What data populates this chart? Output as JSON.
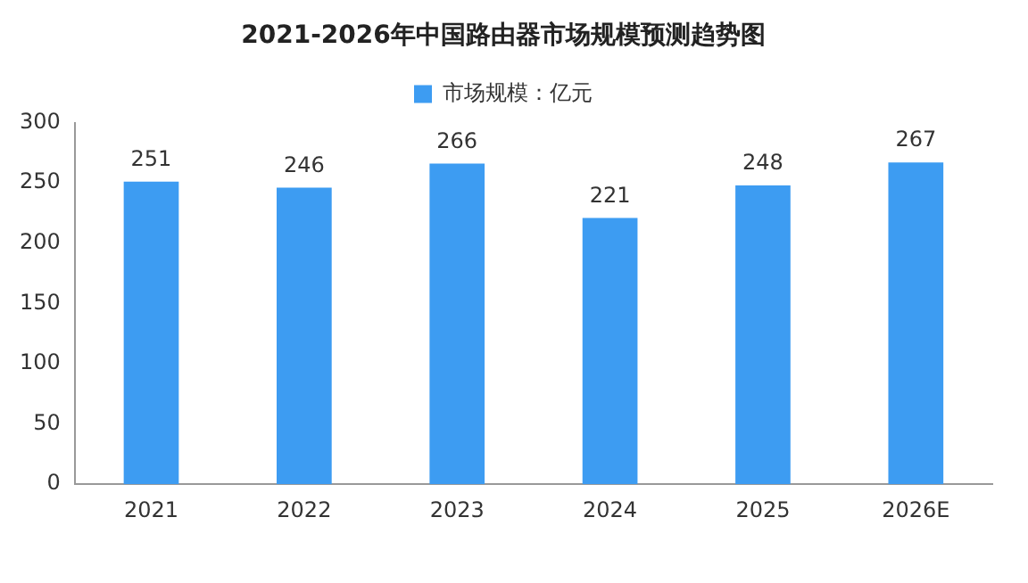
{
  "chart_data": {
    "type": "bar",
    "title": "2021-2026年中国路由器市场规模预测趋势图",
    "categories": [
      "2021",
      "2022",
      "2023",
      "2024",
      "2025",
      "2026E"
    ],
    "series": [
      {
        "name": "市场规模：亿元",
        "color": "#3d9cf2",
        "values": [
          251,
          246,
          266,
          221,
          248,
          267
        ]
      }
    ],
    "ylim": [
      0,
      300
    ],
    "yticks": [
      0,
      50,
      100,
      150,
      200,
      250,
      300
    ],
    "grid": false,
    "legend": "top",
    "data_labels": true
  }
}
